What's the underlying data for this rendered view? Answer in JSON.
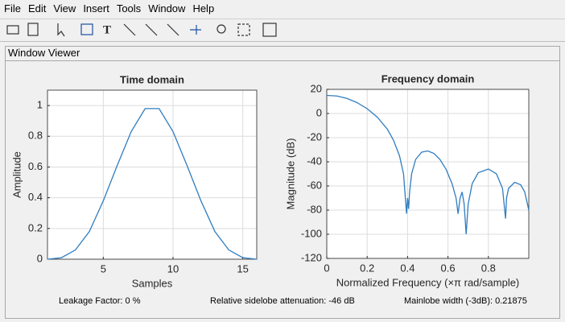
{
  "menu": [
    "File",
    "Edit",
    "View",
    "Insert",
    "Tools",
    "Window",
    "Help"
  ],
  "panel_title": "Window Viewer",
  "footer": {
    "leakage": "Leakage Factor: 0 %",
    "sidelobe": "Relative sidelobe attenuation: -46 dB",
    "mainlobe": "Mainlobe width (-3dB): 0.21875"
  },
  "chart_data": [
    {
      "type": "line",
      "title": "Time domain",
      "x_label": "Samples",
      "y_label": "Amplitude",
      "color": "#2f7dc0",
      "grid": true,
      "x": [
        1,
        2,
        3,
        4,
        5,
        6,
        7,
        8,
        9,
        10,
        11,
        12,
        13,
        14,
        15,
        16
      ],
      "values": [
        0,
        0.01,
        0.06,
        0.18,
        0.38,
        0.61,
        0.83,
        0.98,
        0.98,
        0.83,
        0.61,
        0.38,
        0.18,
        0.06,
        0.01,
        0
      ],
      "xlim": [
        1,
        16
      ],
      "ylim": [
        0,
        1.1
      ],
      "xticks": [
        5,
        10,
        15
      ],
      "yticks": [
        0,
        0.2,
        0.4,
        0.6,
        0.8,
        1
      ]
    },
    {
      "type": "line",
      "title": "Frequency domain",
      "x_label": "Normalized Frequency  (×π rad/sample)",
      "y_label": "Magnitude (dB)",
      "color": "#2f7dc0",
      "grid": true,
      "x": [
        0,
        0.05,
        0.1,
        0.15,
        0.2,
        0.25,
        0.3,
        0.33,
        0.36,
        0.38,
        0.395,
        0.4,
        0.405,
        0.41,
        0.42,
        0.44,
        0.47,
        0.5,
        0.53,
        0.56,
        0.59,
        0.62,
        0.64,
        0.65,
        0.66,
        0.67,
        0.68,
        0.69,
        0.7,
        0.72,
        0.75,
        0.8,
        0.84,
        0.87,
        0.885,
        0.89,
        0.9,
        0.93,
        0.96,
        0.98,
        1.0
      ],
      "values": [
        15,
        14.5,
        12.5,
        9,
        4,
        -3,
        -13,
        -22,
        -35,
        -50,
        -83,
        -70,
        -79,
        -65,
        -50,
        -38,
        -32,
        -31,
        -33,
        -38,
        -46,
        -58,
        -70,
        -83,
        -70,
        -65,
        -75,
        -100,
        -75,
        -58,
        -49,
        -46,
        -50,
        -62,
        -87,
        -70,
        -62,
        -57,
        -59,
        -65,
        -80
      ],
      "xlim": [
        0,
        1
      ],
      "ylim": [
        -120,
        20
      ],
      "xticks": [
        0,
        0.2,
        0.4,
        0.6,
        0.8
      ],
      "yticks": [
        -120,
        -100,
        -80,
        -60,
        -40,
        -20,
        0,
        20
      ]
    }
  ]
}
